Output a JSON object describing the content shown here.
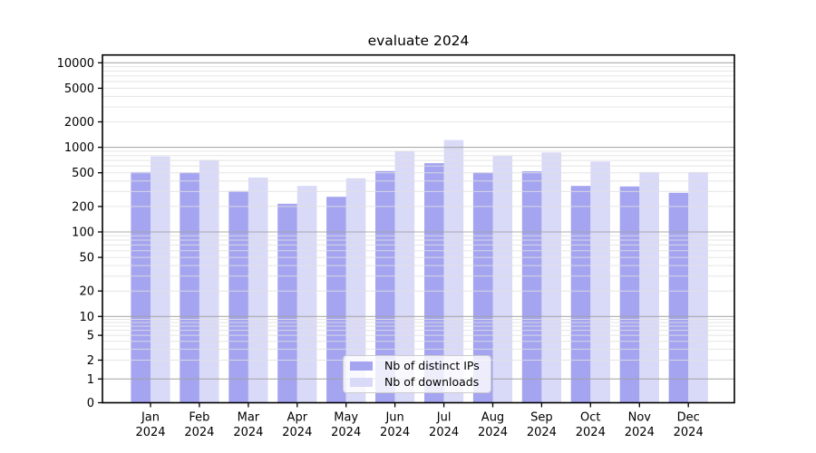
{
  "chart_data": {
    "type": "bar",
    "title": "evaluate 2024",
    "categories": [
      "Jan 2024",
      "Feb 2024",
      "Mar 2024",
      "Apr 2024",
      "May 2024",
      "Jun 2024",
      "Jul 2024",
      "Aug 2024",
      "Sep 2024",
      "Oct 2024",
      "Nov 2024",
      "Dec 2024"
    ],
    "series": [
      {
        "name": "Nb of distinct IPs",
        "color": "#a4a4f0",
        "values": [
          510,
          505,
          305,
          215,
          260,
          525,
          650,
          505,
          520,
          350,
          345,
          290
        ]
      },
      {
        "name": "Nb of downloads",
        "color": "#d9d9f8",
        "values": [
          780,
          710,
          440,
          350,
          430,
          900,
          1220,
          790,
          870,
          680,
          510,
          510
        ]
      }
    ],
    "xlabel": "",
    "ylabel": "",
    "yscale": "symlog",
    "yticks": [
      0,
      1,
      2,
      5,
      10,
      20,
      50,
      100,
      200,
      500,
      1000,
      2000,
      5000,
      10000
    ],
    "ylim": [
      0,
      12400
    ],
    "grid": "horizontal, major + minor (log subdivisions)",
    "legend_position": "lower center inside plot",
    "colors": {
      "major_grid": "#a3a3a3",
      "minor_grid": "#e0e0e0",
      "axis": "#000000"
    }
  }
}
